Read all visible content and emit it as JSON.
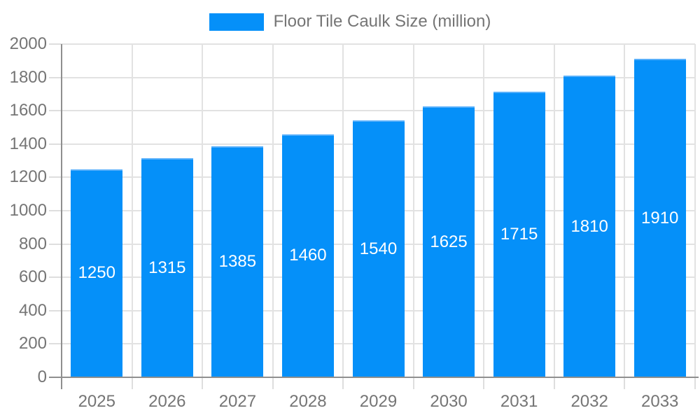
{
  "chart_data": {
    "type": "bar",
    "title": "Floor Tile Caulk Size (million)",
    "categories": [
      "2025",
      "2026",
      "2027",
      "2028",
      "2029",
      "2030",
      "2031",
      "2032",
      "2033"
    ],
    "series": [
      {
        "name": "Floor Tile Caulk Size (million)",
        "values": [
          1250,
          1315,
          1385,
          1460,
          1540,
          1625,
          1715,
          1810,
          1910
        ]
      }
    ],
    "bar_value_labels": [
      1250,
      1315,
      1385,
      1460,
      1540,
      1625,
      1715,
      1810,
      1910
    ],
    "xlabel": "",
    "ylabel": "",
    "ylim": [
      0,
      2000
    ],
    "ytick_step": 200,
    "ytick_labels": [
      "0",
      "200",
      "400",
      "600",
      "800",
      "1000",
      "1200",
      "1400",
      "1600",
      "1800",
      "2000"
    ],
    "grid": true,
    "legend_position": "top",
    "colors": {
      "bar_fill": "#0590f9",
      "bar_border_top": "#58b0fb",
      "value_label_text": "#ffffff",
      "axis_label_text": "#757575",
      "legend_text": "#757575",
      "gridline": "#e2e2e2",
      "tick_mark": "#dedede",
      "axis_line": "#8f8f8f",
      "background": "#ffffff"
    }
  }
}
